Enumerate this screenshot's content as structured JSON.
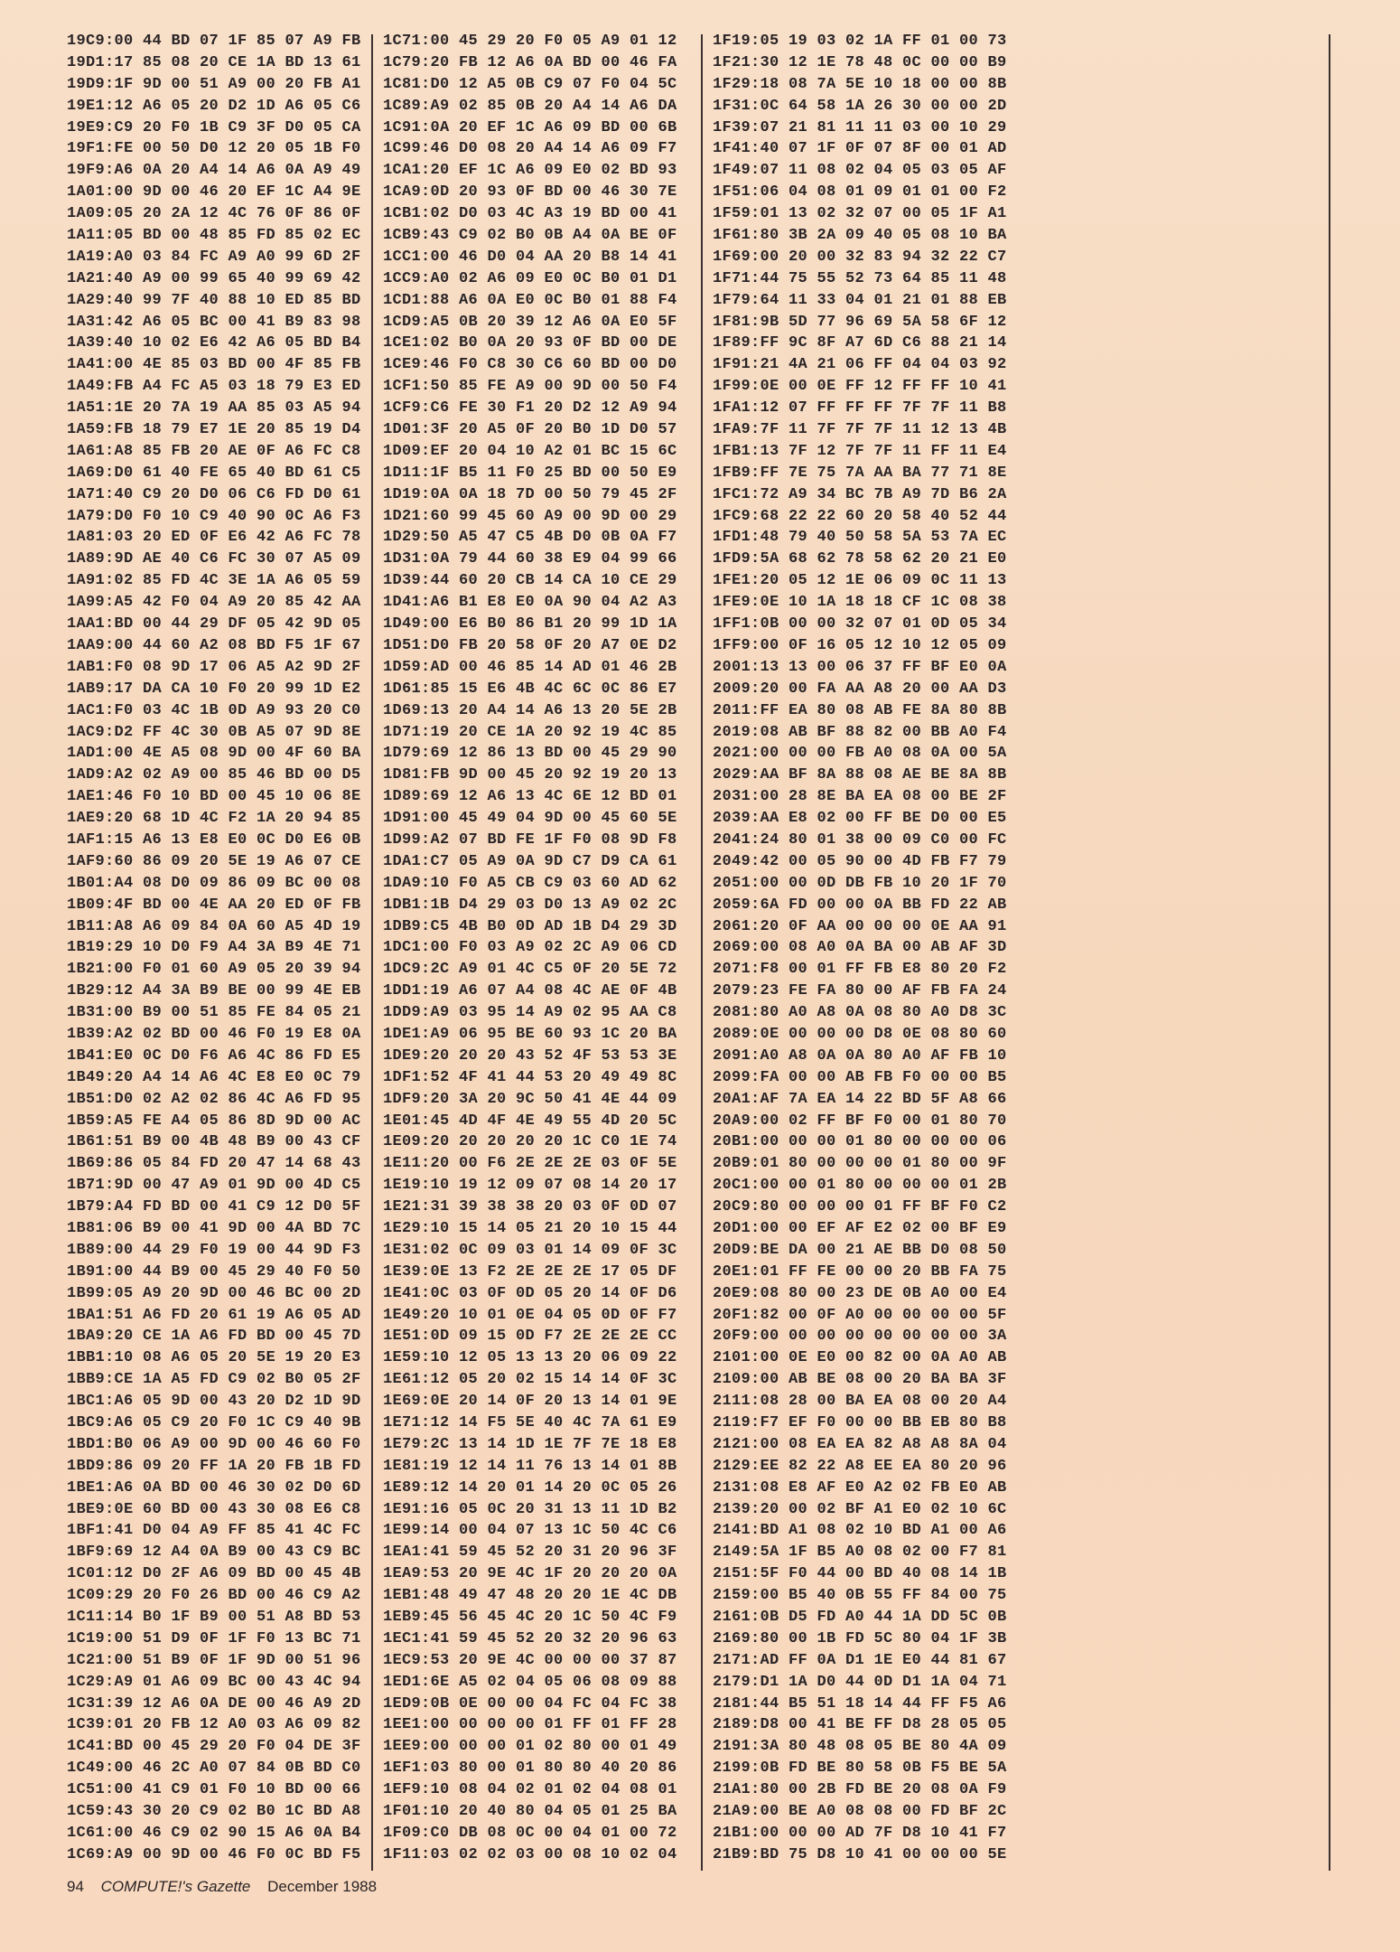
{
  "listing": {
    "columns": [
      [
        "19C9:00 44 BD 07 1F 85 07 A9 FB",
        "19D1:17 85 08 20 CE 1A BD 13 61",
        "19D9:1F 9D 00 51 A9 00 20 FB A1",
        "19E1:12 A6 05 20 D2 1D A6 05 C6",
        "19E9:C9 20 F0 1B C9 3F D0 05 CA",
        "19F1:FE 00 50 D0 12 20 05 1B F0",
        "19F9:A6 0A 20 A4 14 A6 0A A9 49",
        "1A01:00 9D 00 46 20 EF 1C A4 9E",
        "1A09:05 20 2A 12 4C 76 0F 86 0F",
        "1A11:05 BD 00 48 85 FD 85 02 EC",
        "1A19:A0 03 84 FC A9 A0 99 6D 2F",
        "1A21:40 A9 00 99 65 40 99 69 42",
        "1A29:40 99 7F 40 88 10 ED 85 BD",
        "1A31:42 A6 05 BC 00 41 B9 83 98",
        "1A39:40 10 02 E6 42 A6 05 BD B4",
        "1A41:00 4E 85 03 BD 00 4F 85 FB",
        "1A49:FB A4 FC A5 03 18 79 E3 ED",
        "1A51:1E 20 7A 19 AA 85 03 A5 94",
        "1A59:FB 18 79 E7 1E 20 85 19 D4",
        "1A61:A8 85 FB 20 AE 0F A6 FC C8",
        "1A69:D0 61 40 FE 65 40 BD 61 C5",
        "1A71:40 C9 20 D0 06 C6 FD D0 61",
        "1A79:D0 F0 10 C9 40 90 0C A6 F3",
        "1A81:03 20 ED 0F E6 42 A6 FC 78",
        "1A89:9D AE 40 C6 FC 30 07 A5 09",
        "1A91:02 85 FD 4C 3E 1A A6 05 59",
        "1A99:A5 42 F0 04 A9 20 85 42 AA",
        "1AA1:BD 00 44 29 DF 05 42 9D 05",
        "1AA9:00 44 60 A2 08 BD F5 1F 67",
        "1AB1:F0 08 9D 17 06 A5 A2 9D 2F",
        "1AB9:17 DA CA 10 F0 20 99 1D E2",
        "1AC1:F0 03 4C 1B 0D A9 93 20 C0",
        "1AC9:D2 FF 4C 30 0B A5 07 9D 8E",
        "1AD1:00 4E A5 08 9D 00 4F 60 BA",
        "1AD9:A2 02 A9 00 85 46 BD 00 D5",
        "1AE1:46 F0 10 BD 00 45 10 06 8E",
        "1AE9:20 68 1D 4C F2 1A 20 94 85",
        "1AF1:15 A6 13 E8 E0 0C D0 E6 0B",
        "1AF9:60 86 09 20 5E 19 A6 07 CE",
        "1B01:A4 08 D0 09 86 09 BC 00 08",
        "1B09:4F BD 00 4E AA 20 ED 0F FB",
        "1B11:A8 A6 09 84 0A 60 A5 4D 19",
        "1B19:29 10 D0 F9 A4 3A B9 4E 71",
        "1B21:00 F0 01 60 A9 05 20 39 94",
        "1B29:12 A4 3A B9 BE 00 99 4E EB",
        "1B31:00 B9 00 51 85 FE 84 05 21",
        "1B39:A2 02 BD 00 46 F0 19 E8 0A",
        "1B41:E0 0C D0 F6 A6 4C 86 FD E5",
        "1B49:20 A4 14 A6 4C E8 E0 0C 79",
        "1B51:D0 02 A2 02 86 4C A6 FD 95",
        "1B59:A5 FE A4 05 86 8D 9D 00 AC",
        "1B61:51 B9 00 4B 48 B9 00 43 CF",
        "1B69:86 05 84 FD 20 47 14 68 43",
        "1B71:9D 00 47 A9 01 9D 00 4D C5",
        "1B79:A4 FD BD 00 41 C9 12 D0 5F",
        "1B81:06 B9 00 41 9D 00 4A BD 7C",
        "1B89:00 44 29 F0 19 00 44 9D F3",
        "1B91:00 44 B9 00 45 29 40 F0 50",
        "1B99:05 A9 20 9D 00 46 BC 00 2D",
        "1BA1:51 A6 FD 20 61 19 A6 05 AD",
        "1BA9:20 CE 1A A6 FD BD 00 45 7D",
        "1BB1:10 08 A6 05 20 5E 19 20 E3",
        "1BB9:CE 1A A5 FD C9 02 B0 05 2F",
        "1BC1:A6 05 9D 00 43 20 D2 1D 9D",
        "1BC9:A6 05 C9 20 F0 1C C9 40 9B",
        "1BD1:B0 06 A9 00 9D 00 46 60 F0",
        "1BD9:86 09 20 FF 1A 20 FB 1B FD",
        "1BE1:A6 0A BD 00 46 30 02 D0 6D",
        "1BE9:0E 60 BD 00 43 30 08 E6 C8",
        "1BF1:41 D0 04 A9 FF 85 41 4C FC",
        "1BF9:69 12 A4 0A B9 00 43 C9 BC",
        "1C01:12 D0 2F A6 09 BD 00 45 4B",
        "1C09:29 20 F0 26 BD 00 46 C9 A2",
        "1C11:14 B0 1F B9 00 51 A8 BD 53",
        "1C19:00 51 D9 0F 1F F0 13 BC 71",
        "1C21:00 51 B9 0F 1F 9D 00 51 96",
        "1C29:A9 01 A6 09 BC 00 43 4C 94",
        "1C31:39 12 A6 0A DE 00 46 A9 2D",
        "1C39:01 20 FB 12 A0 03 A6 09 82",
        "1C41:BD 00 45 29 20 F0 04 DE 3F",
        "1C49:00 46 2C A0 07 84 0B BD C0",
        "1C51:00 41 C9 01 F0 10 BD 00 66",
        "1C59:43 30 20 C9 02 B0 1C BD A8",
        "1C61:00 46 C9 02 90 15 A6 0A B4",
        "1C69:A9 00 9D 00 46 F0 0C BD F5"
      ],
      [
        "1C71:00 45 29 20 F0 05 A9 01 12",
        "1C79:20 FB 12 A6 0A BD 00 46 FA",
        "1C81:D0 12 A5 0B C9 07 F0 04 5C",
        "1C89:A9 02 85 0B 20 A4 14 A6 DA",
        "1C91:0A 20 EF 1C A6 09 BD 00 6B",
        "1C99:46 D0 08 20 A4 14 A6 09 F7",
        "1CA1:20 EF 1C A6 09 E0 02 BD 93",
        "1CA9:0D 20 93 0F BD 00 46 30 7E",
        "1CB1:02 D0 03 4C A3 19 BD 00 41",
        "1CB9:43 C9 02 B0 0B A4 0A BE 0F",
        "1CC1:00 46 D0 04 AA 20 B8 14 41",
        "1CC9:A0 02 A6 09 E0 0C B0 01 D1",
        "1CD1:88 A6 0A E0 0C B0 01 88 F4",
        "1CD9:A5 0B 20 39 12 A6 0A E0 5F",
        "1CE1:02 B0 0A 20 93 0F BD 00 DE",
        "1CE9:46 F0 C8 30 C6 60 BD 00 D0",
        "1CF1:50 85 FE A9 00 9D 00 50 F4",
        "1CF9:C6 FE 30 F1 20 D2 12 A9 94",
        "1D01:3F 20 A5 0F 20 B0 1D D0 57",
        "1D09:EF 20 04 10 A2 01 BC 15 6C",
        "1D11:1F B5 11 F0 25 BD 00 50 E9",
        "1D19:0A 0A 18 7D 00 50 79 45 2F",
        "1D21:60 99 45 60 A9 00 9D 00 29",
        "1D29:50 A5 47 C5 4B D0 0B 0A F7",
        "1D31:0A 79 44 60 38 E9 04 99 66",
        "1D39:44 60 20 CB 14 CA 10 CE 29",
        "1D41:A6 B1 E8 E0 0A 90 04 A2 A3",
        "1D49:00 E6 B0 86 B1 20 99 1D 1A",
        "1D51:D0 FB 20 58 0F 20 A7 0E D2",
        "1D59:AD 00 46 85 14 AD 01 46 2B",
        "1D61:85 15 E6 4B 4C 6C 0C 86 E7",
        "1D69:13 20 A4 14 A6 13 20 5E 2B",
        "1D71:19 20 CE 1A 20 92 19 4C 85",
        "1D79:69 12 86 13 BD 00 45 29 90",
        "1D81:FB 9D 00 45 20 92 19 20 13",
        "1D89:69 12 A6 13 4C 6E 12 BD 01",
        "1D91:00 45 49 04 9D 00 45 60 5E",
        "1D99:A2 07 BD FE 1F F0 08 9D F8",
        "1DA1:C7 05 A9 0A 9D C7 D9 CA 61",
        "1DA9:10 F0 A5 CB C9 03 60 AD 62",
        "1DB1:1B D4 29 03 D0 13 A9 02 2C",
        "1DB9:C5 4B B0 0D AD 1B D4 29 3D",
        "1DC1:00 F0 03 A9 02 2C A9 06 CD",
        "1DC9:2C A9 01 4C C5 0F 20 5E 72",
        "1DD1:19 A6 07 A4 08 4C AE 0F 4B",
        "1DD9:A9 03 95 14 A9 02 95 AA C8",
        "1DE1:A9 06 95 BE 60 93 1C 20 BA",
        "1DE9:20 20 20 43 52 4F 53 53 3E",
        "1DF1:52 4F 41 44 53 20 49 49 8C",
        "1DF9:20 3A 20 9C 50 41 4E 44 09",
        "1E01:45 4D 4F 4E 49 55 4D 20 5C",
        "1E09:20 20 20 20 20 1C C0 1E 74",
        "1E11:20 00 F6 2E 2E 2E 03 0F 5E",
        "1E19:10 19 12 09 07 08 14 20 17",
        "1E21:31 39 38 38 20 03 0F 0D 07",
        "1E29:10 15 14 05 21 20 10 15 44",
        "1E31:02 0C 09 03 01 14 09 0F 3C",
        "1E39:0E 13 F2 2E 2E 2E 17 05 DF",
        "1E41:0C 03 0F 0D 05 20 14 0F D6",
        "1E49:20 10 01 0E 04 05 0D 0F F7",
        "1E51:0D 09 15 0D F7 2E 2E 2E CC",
        "1E59:10 12 05 13 13 20 06 09 22",
        "1E61:12 05 20 02 15 14 14 0F 3C",
        "1E69:0E 20 14 0F 20 13 14 01 9E",
        "1E71:12 14 F5 5E 40 4C 7A 61 E9",
        "1E79:2C 13 14 1D 1E 7F 7E 18 E8",
        "1E81:19 12 14 11 76 13 14 01 8B",
        "1E89:12 14 20 01 14 20 0C 05 26",
        "1E91:16 05 0C 20 31 13 11 1D B2",
        "1E99:14 00 04 07 13 1C 50 4C C6",
        "1EA1:41 59 45 52 20 31 20 96 3F",
        "1EA9:53 20 9E 4C 1F 20 20 20 0A",
        "1EB1:48 49 47 48 20 20 1E 4C DB",
        "1EB9:45 56 45 4C 20 1C 50 4C F9",
        "1EC1:41 59 45 52 20 32 20 96 63",
        "1EC9:53 20 9E 4C 00 00 00 37 87",
        "1ED1:6E A5 02 04 05 06 08 09 88",
        "1ED9:0B 0E 00 00 04 FC 04 FC 38",
        "1EE1:00 00 00 00 01 FF 01 FF 28",
        "1EE9:00 00 00 01 02 80 00 01 49",
        "1EF1:03 80 00 01 80 80 40 20 86",
        "1EF9:10 08 04 02 01 02 04 08 01",
        "1F01:10 20 40 80 04 05 01 25 BA",
        "1F09:C0 DB 08 0C 00 04 01 00 72",
        "1F11:03 02 02 03 00 08 10 02 04"
      ],
      [
        "1F19:05 19 03 02 1A FF 01 00 73",
        "1F21:30 12 1E 78 48 0C 00 00 B9",
        "1F29:18 08 7A 5E 10 18 00 00 8B",
        "1F31:0C 64 58 1A 26 30 00 00 2D",
        "1F39:07 21 81 11 11 03 00 10 29",
        "1F41:40 07 1F 0F 07 8F 00 01 AD",
        "1F49:07 11 08 02 04 05 03 05 AF",
        "1F51:06 04 08 01 09 01 01 00 F2",
        "1F59:01 13 02 32 07 00 05 1F A1",
        "1F61:80 3B 2A 09 40 05 08 10 BA",
        "1F69:00 20 00 32 83 94 32 22 C7",
        "1F71:44 75 55 52 73 64 85 11 48",
        "1F79:64 11 33 04 01 21 01 88 EB",
        "1F81:9B 5D 77 96 69 5A 58 6F 12",
        "1F89:FF 9C 8F A7 6D C6 88 21 14",
        "1F91:21 4A 21 06 FF 04 04 03 92",
        "1F99:0E 00 0E FF 12 FF FF 10 41",
        "1FA1:12 07 FF FF FF 7F 7F 11 B8",
        "1FA9:7F 11 7F 7F 7F 11 12 13 4B",
        "1FB1:13 7F 12 7F 7F 11 FF 11 E4",
        "1FB9:FF 7E 75 7A AA BA 77 71 8E",
        "1FC1:72 A9 34 BC 7B A9 7D B6 2A",
        "1FC9:68 22 22 60 20 58 40 52 44",
        "1FD1:48 79 40 50 58 5A 53 7A EC",
        "1FD9:5A 68 62 78 58 62 20 21 E0",
        "1FE1:20 05 12 1E 06 09 0C 11 13",
        "1FE9:0E 10 1A 18 18 CF 1C 08 38",
        "1FF1:0B 00 00 32 07 01 0D 05 34",
        "1FF9:00 0F 16 05 12 10 12 05 09",
        "2001:13 13 00 06 37 FF BF E0 0A",
        "2009:20 00 FA AA A8 20 00 AA D3",
        "2011:FF EA 80 08 AB FE 8A 80 8B",
        "2019:08 AB BF 88 82 00 BB A0 F4",
        "2021:00 00 00 FB A0 08 0A 00 5A",
        "2029:AA BF 8A 88 08 AE BE 8A 8B",
        "2031:00 28 8E BA EA 08 00 BE 2F",
        "2039:AA E8 02 00 FF BE D0 00 E5",
        "2041:24 80 01 38 00 09 C0 00 FC",
        "2049:42 00 05 90 00 4D FB F7 79",
        "2051:00 00 0D DB FB 10 20 1F 70",
        "2059:6A FD 00 00 0A BB FD 22 AB",
        "2061:20 0F AA 00 00 00 0E AA 91",
        "2069:00 08 A0 0A BA 00 AB AF 3D",
        "2071:F8 00 01 FF FB E8 80 20 F2",
        "2079:23 FE FA 80 00 AF FB FA 24",
        "2081:80 A0 A8 0A 08 80 A0 D8 3C",
        "2089:0E 00 00 00 D8 0E 08 80 60",
        "2091:A0 A8 0A 0A 80 A0 AF FB 10",
        "2099:FA 00 00 AB FB F0 00 00 B5",
        "20A1:AF 7A EA 14 22 BD 5F A8 66",
        "20A9:00 02 FF BF F0 00 01 80 70",
        "20B1:00 00 00 01 80 00 00 00 06",
        "20B9:01 80 00 00 00 01 80 00 9F",
        "20C1:00 00 01 80 00 00 00 01 2B",
        "20C9:80 00 00 00 01 FF BF F0 C2",
        "20D1:00 00 EF AF E2 02 00 BF E9",
        "20D9:BE DA 00 21 AE BB D0 08 50",
        "20E1:01 FF FE 00 00 20 BB FA 75",
        "20E9:08 80 00 23 DE 0B A0 00 E4",
        "20F1:82 00 0F A0 00 00 00 00 5F",
        "20F9:00 00 00 00 00 00 00 00 3A",
        "2101:00 0E E0 00 82 00 0A A0 AB",
        "2109:00 AB BE 08 00 20 BA BA 3F",
        "2111:08 28 00 BA EA 08 00 20 A4",
        "2119:F7 EF F0 00 00 BB EB 80 B8",
        "2121:00 08 EA EA 82 A8 A8 8A 04",
        "2129:EE 82 22 A8 EE EA 80 20 96",
        "2131:08 E8 AF E0 A2 02 FB E0 AB",
        "2139:20 00 02 BF A1 E0 02 10 6C",
        "2141:BD A1 08 02 10 BD A1 00 A6",
        "2149:5A 1F B5 A0 08 02 00 F7 81",
        "2151:5F F0 44 00 BD 40 08 14 1B",
        "2159:00 B5 40 0B 55 FF 84 00 75",
        "2161:0B D5 FD A0 44 1A DD 5C 0B",
        "2169:80 00 1B FD 5C 80 04 1F 3B",
        "2171:AD FF 0A D1 1E E0 44 81 67",
        "2179:D1 1A D0 44 0D D1 1A 04 71",
        "2181:44 B5 51 18 14 44 FF F5 A6",
        "2189:D8 00 41 BE FF D8 28 05 05",
        "2191:3A 80 48 08 05 BE 80 4A 09",
        "2199:0B FD BE 80 58 0B F5 BE 5A",
        "21A1:80 00 2B FD BE 20 08 0A F9",
        "21A9:00 BE A0 08 08 00 FD BF 2C",
        "21B1:00 00 00 AD 7F D8 10 41 F7",
        "21B9:BD 75 D8 10 41 00 00 00 5E"
      ]
    ]
  },
  "footer": {
    "page_number": "94",
    "magazine": "COMPUTE!'s Gazette",
    "issue": "December 1988"
  },
  "colors": {
    "paper": "#f7dcc3",
    "ink": "#2a2426"
  }
}
